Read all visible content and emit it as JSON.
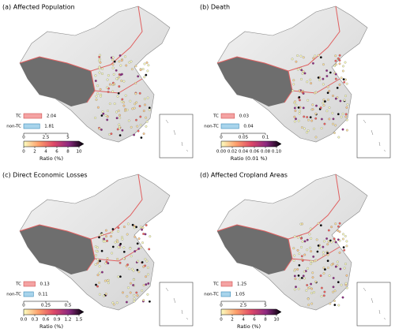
{
  "panels": [
    {
      "title": "(a) Affected Population",
      "bars": {
        "categories": [
          "TC",
          "non-TC"
        ],
        "values": [
          2.04,
          1.81
        ],
        "xlim": [
          0,
          5
        ],
        "xticks": [
          0,
          2.5,
          5
        ]
      },
      "colorbar": {
        "lim": [
          0,
          10
        ],
        "ticks": [
          0,
          2,
          4,
          6,
          8,
          10
        ],
        "label": "Ratio (%)"
      }
    },
    {
      "title": "(b) Death",
      "bars": {
        "categories": [
          "TC",
          "non-TC"
        ],
        "values": [
          0.03,
          0.04
        ],
        "xlim": [
          0,
          0.1
        ],
        "xticks": [
          0,
          0.05,
          0.1
        ]
      },
      "colorbar": {
        "lim": [
          0,
          0.1
        ],
        "ticks": [
          {
            "value": 0,
            "label": "0.00"
          },
          {
            "value": 0.02,
            "label": "0.02"
          },
          {
            "value": 0.04,
            "label": "0.04"
          },
          {
            "value": 0.06,
            "label": "0.06"
          },
          {
            "value": 0.08,
            "label": "0.08"
          },
          {
            "value": 0.1,
            "label": "0.10"
          }
        ],
        "label": "Ratio (0.01 %)"
      }
    },
    {
      "title": "(c) Direct Economic Losses",
      "bars": {
        "categories": [
          "TC",
          "non-TC"
        ],
        "values": [
          0.13,
          0.11
        ],
        "xlim": [
          0,
          0.5
        ],
        "xticks": [
          0,
          0.25,
          0.5
        ]
      },
      "colorbar": {
        "lim": [
          0,
          1.5
        ],
        "ticks": [
          {
            "value": 0,
            "label": "0.0"
          },
          {
            "value": 0.3,
            "label": "0.3"
          },
          {
            "value": 0.6,
            "label": "0.6"
          },
          {
            "value": 0.9,
            "label": "0.9"
          },
          {
            "value": 1.2,
            "label": "1.2"
          },
          {
            "value": 1.5,
            "label": "1.5"
          }
        ],
        "label": "Ratio (%)"
      }
    },
    {
      "title": "(d) Affected Cropland Areas",
      "bars": {
        "categories": [
          "TC",
          "non-TC"
        ],
        "values": [
          1.25,
          1.05
        ],
        "xlim": [
          0,
          5
        ],
        "xticks": [
          0,
          2.5,
          5
        ]
      },
      "colorbar": {
        "lim": [
          0,
          10
        ],
        "ticks": [
          0,
          2,
          4,
          6,
          8,
          10
        ],
        "label": "Ratio (%)"
      }
    }
  ]
}
